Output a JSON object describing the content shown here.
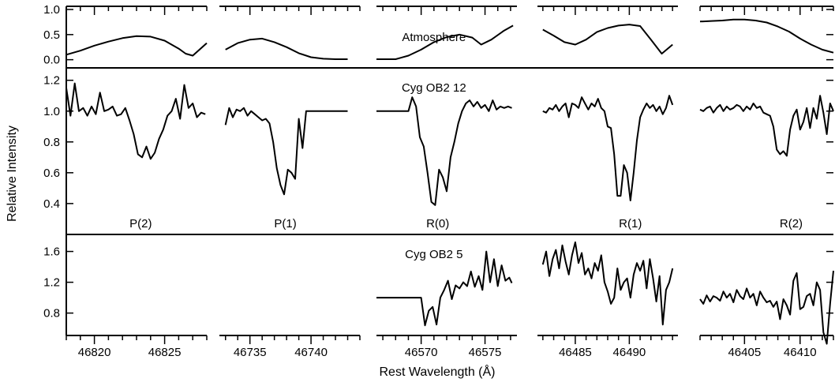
{
  "chart_data": {
    "type": "line",
    "xlabel": "Rest Wavelength (Å)",
    "ylabel": "Relative Intensity",
    "line_labels": [
      "P(2)",
      "P(1)",
      "R(0)",
      "R(1)",
      "R(2)"
    ],
    "segments": [
      {
        "xlim": [
          46818.0,
          46828.0
        ],
        "xticks": [
          46820,
          46825
        ],
        "xtick_labels": [
          "46820",
          "46825"
        ]
      },
      {
        "xlim": [
          46732.5,
          46744.0
        ],
        "xticks": [
          46735,
          46740
        ],
        "xtick_labels": [
          "46735",
          "46740"
        ]
      },
      {
        "xlim": [
          46566.5,
          46577.5
        ],
        "xticks": [
          46570,
          46575
        ],
        "xtick_labels": [
          "46570",
          "46575"
        ]
      },
      {
        "xlim": [
          46481.5,
          46494.5
        ],
        "xticks": [
          46485,
          46490
        ],
        "xtick_labels": [
          "46485",
          "46490"
        ]
      },
      {
        "xlim": [
          46401.0,
          46413.0
        ],
        "xticks": [
          46405,
          46410
        ],
        "xtick_labels": [
          "46405",
          "46410"
        ]
      }
    ],
    "panels": [
      {
        "name": "Atmosphere",
        "ylim": [
          -0.1,
          1.0
        ],
        "yticks": [
          0.0,
          0.5,
          1.0
        ],
        "ytick_labels": [
          "0.0",
          "0.5",
          "1.0"
        ],
        "series": [
          {
            "x": [
              46818.0,
              46819,
              46820,
              46821,
              46822,
              46823,
              46824,
              46825,
              46826,
              46826.5,
              46827,
              46828
            ],
            "y": [
              0.1,
              0.18,
              0.28,
              0.36,
              0.43,
              0.47,
              0.46,
              0.38,
              0.22,
              0.12,
              0.08,
              0.33
            ]
          },
          {
            "x": [
              46733.0,
              46734,
              46735,
              46736,
              46737,
              46738,
              46739,
              46740,
              46741,
              46742,
              46743
            ],
            "y": [
              0.2,
              0.33,
              0.4,
              0.42,
              0.35,
              0.25,
              0.13,
              0.05,
              0.02,
              0.01,
              0.01
            ]
          },
          {
            "x": [
              46566.5,
              46568,
              46569,
              46570,
              46571,
              46572,
              46573,
              46574,
              46574.7,
              46575.5,
              46576.5,
              46577.2
            ],
            "y": [
              0.01,
              0.01,
              0.08,
              0.2,
              0.35,
              0.45,
              0.5,
              0.44,
              0.3,
              0.4,
              0.58,
              0.68
            ]
          },
          {
            "x": [
              46482.0,
              46483,
              46484,
              46485,
              46486,
              46487,
              46488,
              46489,
              46490,
              46491,
              46492,
              46493,
              46494
            ],
            "y": [
              0.6,
              0.48,
              0.35,
              0.3,
              0.4,
              0.55,
              0.63,
              0.68,
              0.7,
              0.67,
              0.4,
              0.12,
              0.3
            ]
          },
          {
            "x": [
              46401.0,
              46402,
              46403,
              46404,
              46405,
              46406,
              46407,
              46408,
              46409,
              46410,
              46411,
              46412,
              46413
            ],
            "y": [
              0.76,
              0.77,
              0.78,
              0.8,
              0.8,
              0.78,
              0.74,
              0.66,
              0.56,
              0.42,
              0.3,
              0.2,
              0.14
            ]
          }
        ]
      },
      {
        "name": "Cyg OB2 12",
        "ylim": [
          0.22,
          1.26
        ],
        "yticks": [
          0.4,
          0.6,
          0.8,
          1.0,
          1.2
        ],
        "ytick_labels": [
          "0.4",
          "0.6",
          "0.8",
          "1.0",
          "1.2"
        ],
        "series": [
          {
            "x": [
              46818.0,
              46818.3,
              46818.6,
              46818.9,
              46819.2,
              46819.5,
              46819.8,
              46820.1,
              46820.4,
              46820.7,
              46821,
              46821.3,
              46821.6,
              46821.9,
              46822.2,
              46822.5,
              46822.8,
              46823.1,
              46823.4,
              46823.7,
              46824,
              46824.3,
              46824.6,
              46824.9,
              46825.2,
              46825.5,
              46825.8,
              46826.1,
              46826.4,
              46826.7,
              46827,
              46827.3,
              46827.6,
              46827.9
            ],
            "y": [
              1.15,
              0.97,
              1.18,
              1.0,
              1.02,
              0.97,
              1.03,
              0.98,
              1.12,
              1.0,
              1.01,
              1.03,
              0.97,
              0.98,
              1.02,
              0.94,
              0.85,
              0.72,
              0.7,
              0.77,
              0.69,
              0.73,
              0.82,
              0.88,
              0.97,
              1.0,
              1.08,
              0.95,
              1.17,
              1.02,
              1.05,
              0.96,
              0.99,
              0.98
            ]
          },
          {
            "x": [
              46733.0,
              46733.3,
              46733.6,
              46733.9,
              46734.2,
              46734.5,
              46734.8,
              46735.1,
              46735.4,
              46735.7,
              46736,
              46736.3,
              46736.6,
              46736.9,
              46737.2,
              46737.5,
              46737.8,
              46738.1,
              46738.4,
              46738.7,
              46739,
              46739.3,
              46739.6,
              46740,
              46741,
              46742,
              46743
            ],
            "y": [
              0.91,
              1.02,
              0.96,
              1.01,
              1.0,
              1.02,
              0.97,
              1.0,
              0.98,
              0.96,
              0.94,
              0.95,
              0.92,
              0.8,
              0.63,
              0.52,
              0.46,
              0.62,
              0.6,
              0.56,
              0.95,
              0.76,
              1.0,
              1.0,
              1.0,
              1.0,
              1.0
            ]
          },
          {
            "x": [
              46566.5,
              46569,
              46569.3,
              46569.6,
              46569.9,
              46570.2,
              46570.5,
              46570.8,
              46571.1,
              46571.4,
              46571.7,
              46572,
              46572.3,
              46572.6,
              46572.9,
              46573.2,
              46573.5,
              46573.8,
              46574.1,
              46574.4,
              46574.7,
              46575,
              46575.3,
              46575.6,
              46575.9,
              46576.2,
              46576.5,
              46576.8,
              46577.1
            ],
            "y": [
              1.0,
              1.0,
              1.09,
              1.03,
              0.83,
              0.77,
              0.6,
              0.41,
              0.39,
              0.62,
              0.57,
              0.48,
              0.7,
              0.8,
              0.92,
              1.0,
              1.05,
              1.07,
              1.03,
              1.06,
              1.02,
              1.04,
              1.0,
              1.07,
              1.01,
              1.03,
              1.02,
              1.03,
              1.02
            ]
          },
          {
            "x": [
              46482.0,
              46482.3,
              46482.6,
              46482.9,
              46483.2,
              46483.5,
              46483.8,
              46484.1,
              46484.4,
              46484.7,
              46485,
              46485.3,
              46485.6,
              46485.9,
              46486.2,
              46486.5,
              46486.8,
              46487.1,
              46487.4,
              46487.7,
              46488,
              46488.3,
              46488.6,
              46488.9,
              46489.2,
              46489.5,
              46489.8,
              46490.1,
              46490.4,
              46490.7,
              46491,
              46491.3,
              46491.6,
              46491.9,
              46492.2,
              46492.5,
              46492.8,
              46493.1,
              46493.4,
              46493.7,
              46494
            ],
            "y": [
              1.0,
              0.99,
              1.02,
              1.01,
              1.04,
              1.0,
              1.03,
              1.05,
              0.96,
              1.05,
              1.04,
              1.02,
              1.09,
              1.05,
              1.01,
              1.05,
              1.03,
              1.08,
              1.02,
              1.0,
              0.9,
              0.89,
              0.72,
              0.45,
              0.45,
              0.65,
              0.6,
              0.42,
              0.6,
              0.81,
              0.96,
              1.01,
              1.05,
              1.02,
              1.04,
              1.0,
              1.03,
              0.98,
              1.02,
              1.1,
              1.04
            ]
          },
          {
            "x": [
              46401.0,
              46401.3,
              46401.6,
              46401.9,
              46402.2,
              46402.5,
              46402.8,
              46403.1,
              46403.4,
              46403.7,
              46404,
              46404.3,
              46404.6,
              46404.9,
              46405.2,
              46405.5,
              46405.8,
              46406.1,
              46406.4,
              46406.7,
              46407,
              46407.3,
              46407.6,
              46407.9,
              46408.2,
              46408.5,
              46408.8,
              46409.1,
              46409.4,
              46409.7,
              46410,
              46410.3,
              46410.6,
              46410.9,
              46411.2,
              46411.5,
              46411.8,
              46412.1,
              46412.4,
              46412.7,
              46413
            ],
            "y": [
              1.01,
              1.0,
              1.02,
              1.03,
              0.99,
              1.02,
              1.04,
              1.0,
              1.03,
              1.01,
              1.02,
              1.04,
              1.03,
              1.0,
              1.03,
              1.01,
              1.05,
              1.02,
              1.03,
              0.99,
              0.98,
              0.97,
              0.9,
              0.75,
              0.72,
              0.74,
              0.71,
              0.88,
              0.97,
              1.01,
              0.88,
              0.93,
              1.02,
              0.89,
              1.02,
              0.95,
              1.1,
              0.99,
              0.85,
              1.05,
              1.0
            ]
          }
        ]
      },
      {
        "name": "Cyg OB2 5",
        "ylim": [
          0.55,
          1.78
        ],
        "yticks": [
          0.8,
          1.2,
          1.6
        ],
        "ytick_labels": [
          "0.8",
          "1.2",
          "1.6"
        ],
        "series": [
          {
            "x": [
              46566.5,
              46570,
              46570.3,
              46570.6,
              46570.9,
              46571.2,
              46571.5,
              46571.8,
              46572.1,
              46572.4,
              46572.7,
              46573,
              46573.3,
              46573.6,
              46573.9,
              46574.2,
              46574.5,
              46574.8,
              46575.1,
              46575.4,
              46575.7,
              46576,
              46576.3,
              46576.6,
              46576.9,
              46577.1
            ],
            "y": [
              1.0,
              1.0,
              0.64,
              0.83,
              0.88,
              0.65,
              1.0,
              1.1,
              1.22,
              0.98,
              1.16,
              1.12,
              1.2,
              1.15,
              1.34,
              1.14,
              1.28,
              1.1,
              1.6,
              1.2,
              1.5,
              1.15,
              1.42,
              1.22,
              1.26,
              1.19
            ]
          },
          {
            "x": [
              46482.0,
              46482.3,
              46482.6,
              46482.9,
              46483.2,
              46483.5,
              46483.8,
              46484.1,
              46484.4,
              46484.7,
              46485,
              46485.3,
              46485.6,
              46485.9,
              46486.2,
              46486.5,
              46486.8,
              46487.1,
              46487.4,
              46487.7,
              46488,
              46488.3,
              46488.6,
              46488.9,
              46489.2,
              46489.5,
              46489.8,
              46490.1,
              46490.4,
              46490.7,
              46491,
              46491.3,
              46491.6,
              46491.9,
              46492.2,
              46492.5,
              46492.8,
              46493.1,
              46493.4,
              46493.7,
              46494
            ],
            "y": [
              1.43,
              1.6,
              1.28,
              1.5,
              1.62,
              1.38,
              1.68,
              1.47,
              1.3,
              1.55,
              1.72,
              1.45,
              1.58,
              1.3,
              1.38,
              1.25,
              1.45,
              1.35,
              1.55,
              1.2,
              1.08,
              0.92,
              1.0,
              1.38,
              1.1,
              1.2,
              1.25,
              1.0,
              1.3,
              1.45,
              1.35,
              1.48,
              1.12,
              1.5,
              1.25,
              0.95,
              1.28,
              0.65,
              1.1,
              1.2,
              1.38
            ]
          },
          {
            "x": [
              46401.0,
              46401.3,
              46401.6,
              46401.9,
              46402.2,
              46402.5,
              46402.8,
              46403.1,
              46403.4,
              46403.7,
              46404,
              46404.3,
              46404.6,
              46404.9,
              46405.2,
              46405.5,
              46405.8,
              46406.1,
              46406.4,
              46406.7,
              46407,
              46407.3,
              46407.6,
              46407.9,
              46408.2,
              46408.5,
              46408.8,
              46409.1,
              46409.4,
              46409.7,
              46410,
              46410.3,
              46410.6,
              46410.9,
              46411.2,
              46411.5,
              46411.8,
              46412.1,
              46412.4,
              46412.7,
              46413
            ],
            "y": [
              0.98,
              0.92,
              1.03,
              0.95,
              1.02,
              1.0,
              0.96,
              1.08,
              1.0,
              1.05,
              0.94,
              1.1,
              1.02,
              0.98,
              1.12,
              1.0,
              1.05,
              0.9,
              1.08,
              1.0,
              0.94,
              0.96,
              0.88,
              0.95,
              0.72,
              0.98,
              0.9,
              0.78,
              1.22,
              1.32,
              0.85,
              0.88,
              1.02,
              1.05,
              0.9,
              1.2,
              1.1,
              0.55,
              0.4,
              0.92,
              1.35
            ]
          }
        ]
      }
    ]
  }
}
